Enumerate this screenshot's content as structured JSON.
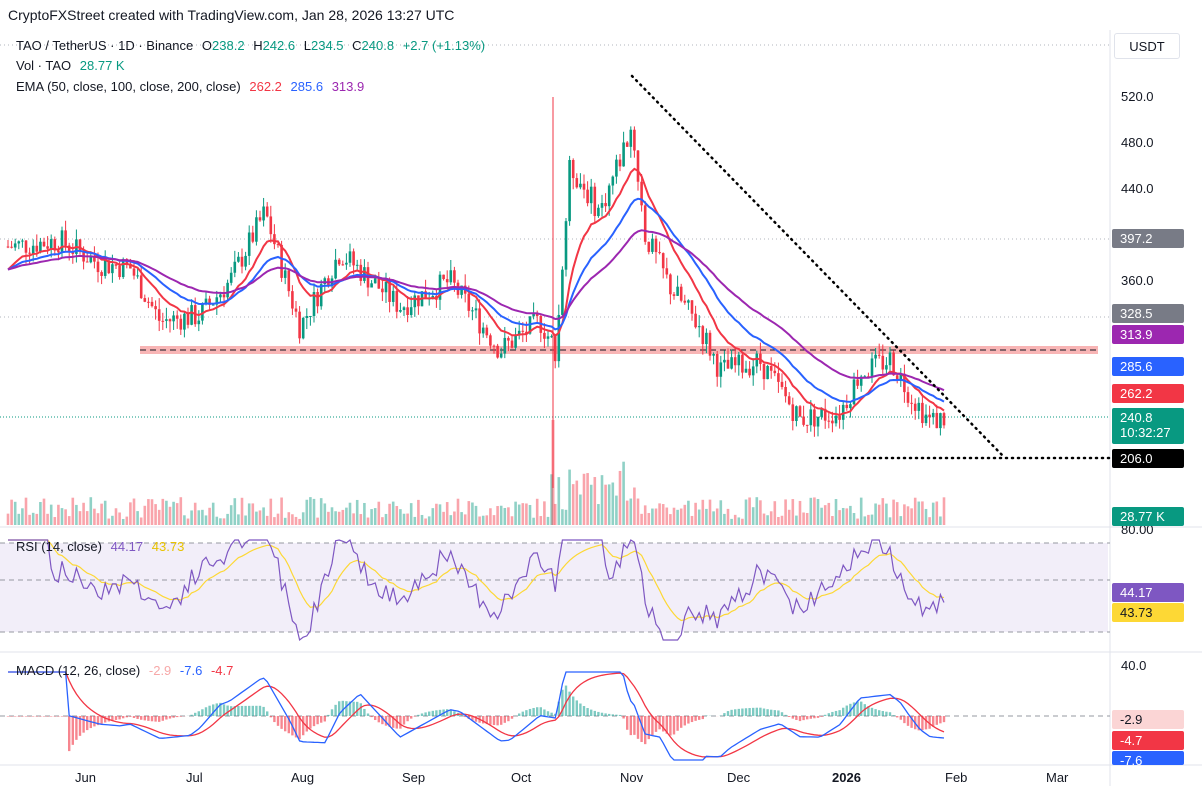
{
  "header": {
    "credit": "CryptoFXStreet created with TradingView.com, Jan 28, 2026 13:27 UTC"
  },
  "legend": {
    "symbol": "TAO / TetherUS · 1D · Binance",
    "o_label": "O",
    "o": "238.2",
    "h_label": "H",
    "h": "242.6",
    "l_label": "L",
    "l": "234.5",
    "c_label": "C",
    "c": "240.8",
    "change": "+2.7 (+1.13%)",
    "vol_label": "Vol · TAO",
    "vol": "28.77 K",
    "ema_label": "EMA (50, close, 100, close, 200, close)",
    "ema50": "262.2",
    "ema100": "285.6",
    "ema200": "313.9",
    "rsi_label": "RSI (14, close)",
    "rsi": "44.17",
    "rsi_ma": "43.73",
    "macd_label": "MACD (12, 26, close)",
    "macd_hist": "-2.9",
    "macd": "-7.6",
    "macd_signal": "-4.7"
  },
  "price_axis": {
    "currency": "USDT",
    "ticks": [
      "520.0",
      "480.0",
      "440.0",
      "360.0"
    ],
    "rsi_ticks": [
      "80.00"
    ],
    "macd_ticks": [
      "40.0"
    ]
  },
  "badges": {
    "b397": "397.2",
    "b328": "328.5",
    "ema200": "313.9",
    "ema100": "285.6",
    "ema50": "262.2",
    "price": "240.8",
    "countdown": "10:32:27",
    "low": "206.0",
    "vol": "28.77 K",
    "rsi": "44.17",
    "rsi_ma": "43.73",
    "macd_hist": "-2.9",
    "macd_signal": "-4.7",
    "macd": "-7.6"
  },
  "time_axis": [
    "Jun",
    "Jul",
    "Aug",
    "Sep",
    "Oct",
    "Nov",
    "Dec",
    "2026",
    "Feb",
    "Mar"
  ],
  "colors": {
    "up": "#089981",
    "down": "#f23645",
    "ema50": "#f23645",
    "ema100": "#2962ff",
    "ema200": "#9c27b0",
    "rsi": "#7e57c2",
    "rsi_ma": "#fdd835",
    "resistance_zone": "#f7a8a8"
  },
  "chart_data": {
    "type": "candlestick",
    "symbol": "TAO/USDT",
    "interval": "1D",
    "x": [
      "Jun",
      "Jul",
      "Aug",
      "Sep",
      "Oct",
      "Nov",
      "Dec",
      "Jan",
      "Feb"
    ],
    "close_approx": [
      390,
      340,
      420,
      335,
      330,
      470,
      300,
      245,
      240.8
    ],
    "ema50_end": 262.2,
    "ema100_end": 285.6,
    "ema200_end": 313.9,
    "levels": [
      397.2,
      328.5,
      206.0
    ],
    "resistance_zone": [
      292,
      300
    ],
    "trendline_from": 545,
    "rsi_last": 44.17,
    "rsi_ma_last": 43.73,
    "macd_last": -7.6,
    "macd_signal_last": -4.7,
    "macd_hist_last": -2.9,
    "ylim": [
      160,
      560
    ]
  }
}
